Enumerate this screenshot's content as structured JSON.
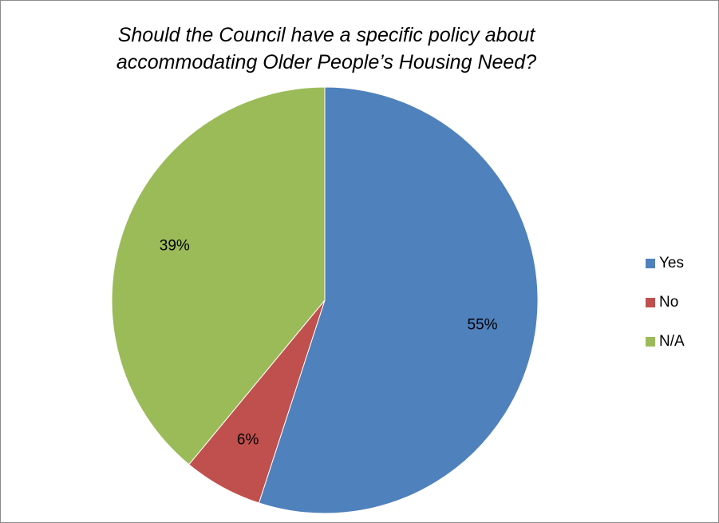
{
  "chart_data": {
    "type": "pie",
    "title": [
      "Should the Council have a specific policy about",
      "accommodating Older People’s Housing Need?"
    ],
    "categories": [
      "Yes",
      "No",
      "N/A"
    ],
    "values": [
      55,
      6,
      39
    ],
    "labels": [
      "55%",
      "6%",
      "39%"
    ],
    "colors": [
      "#4F81BD",
      "#C0504D",
      "#9BBB59"
    ],
    "legend_position": "right"
  }
}
